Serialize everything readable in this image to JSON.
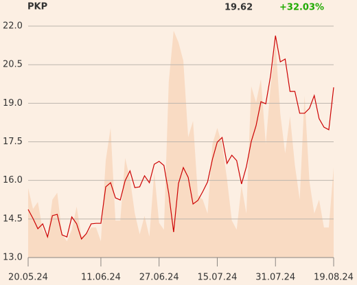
{
  "chart_data": {
    "type": "line",
    "title": "PKP",
    "last": "19.62",
    "change": "+32.03%",
    "change_color": "#1faa00",
    "background": "#fcefe3",
    "grid": true,
    "categories": [
      "20.05.24",
      null,
      null,
      null,
      null,
      null,
      null,
      null,
      null,
      null,
      null,
      null,
      null,
      null,
      null,
      "11.06.24",
      null,
      null,
      null,
      null,
      null,
      null,
      null,
      null,
      null,
      null,
      null,
      "27.06.24",
      null,
      null,
      null,
      null,
      null,
      null,
      null,
      null,
      null,
      null,
      null,
      "15.07.24",
      null,
      null,
      null,
      null,
      null,
      null,
      null,
      null,
      null,
      null,
      null,
      "31.07.24",
      null,
      null,
      null,
      null,
      null,
      null,
      null,
      null,
      null,
      null,
      null,
      "19.08.24"
    ],
    "ylim": [
      13,
      22.5
    ],
    "yticks": [
      {
        "value": 13,
        "label": "13.0"
      },
      14.5,
      {
        "value": 16,
        "label": "16.0"
      },
      17.5,
      {
        "value": 19,
        "label": "19.0"
      },
      20.5,
      {
        "value": 22,
        "label": "22.0"
      }
    ],
    "y2lim": [
      0,
      100
    ],
    "series": [
      {
        "type": "area",
        "axis": "y2",
        "color": "#f9dbc3",
        "values": [
          30,
          21,
          24,
          12,
          9,
          25,
          28,
          10,
          7,
          12,
          22,
          9,
          10,
          13,
          13,
          7,
          42,
          56,
          16,
          16,
          43,
          34,
          19,
          10,
          18,
          9,
          37,
          15,
          12,
          76,
          98,
          93,
          85,
          52,
          59,
          27,
          25,
          19,
          49,
          56,
          49,
          34,
          16,
          12,
          31,
          19,
          74,
          67,
          77,
          49,
          74,
          93,
          62,
          45,
          61,
          40,
          25,
          70,
          33,
          19,
          25,
          13,
          13,
          39
        ]
      },
      {
        "type": "line",
        "color": "#cc0000",
        "values": [
          14.87,
          14.52,
          14.12,
          14.31,
          13.8,
          14.63,
          14.68,
          13.88,
          13.8,
          14.58,
          14.31,
          13.72,
          13.93,
          14.31,
          14.33,
          14.33,
          15.75,
          15.91,
          15.32,
          15.24,
          15.99,
          16.37,
          15.72,
          15.75,
          16.18,
          15.91,
          16.63,
          16.74,
          16.58,
          15.48,
          13.99,
          15.88,
          16.5,
          16.12,
          15.08,
          15.22,
          15.56,
          15.94,
          16.82,
          17.49,
          17.67,
          16.66,
          16.98,
          16.77,
          15.86,
          16.53,
          17.51,
          18.13,
          19.06,
          18.98,
          20.08,
          21.63,
          20.61,
          20.72,
          19.46,
          19.46,
          18.61,
          18.61,
          18.8,
          19.3,
          18.4,
          18.07,
          17.97,
          19.62
        ]
      }
    ]
  }
}
